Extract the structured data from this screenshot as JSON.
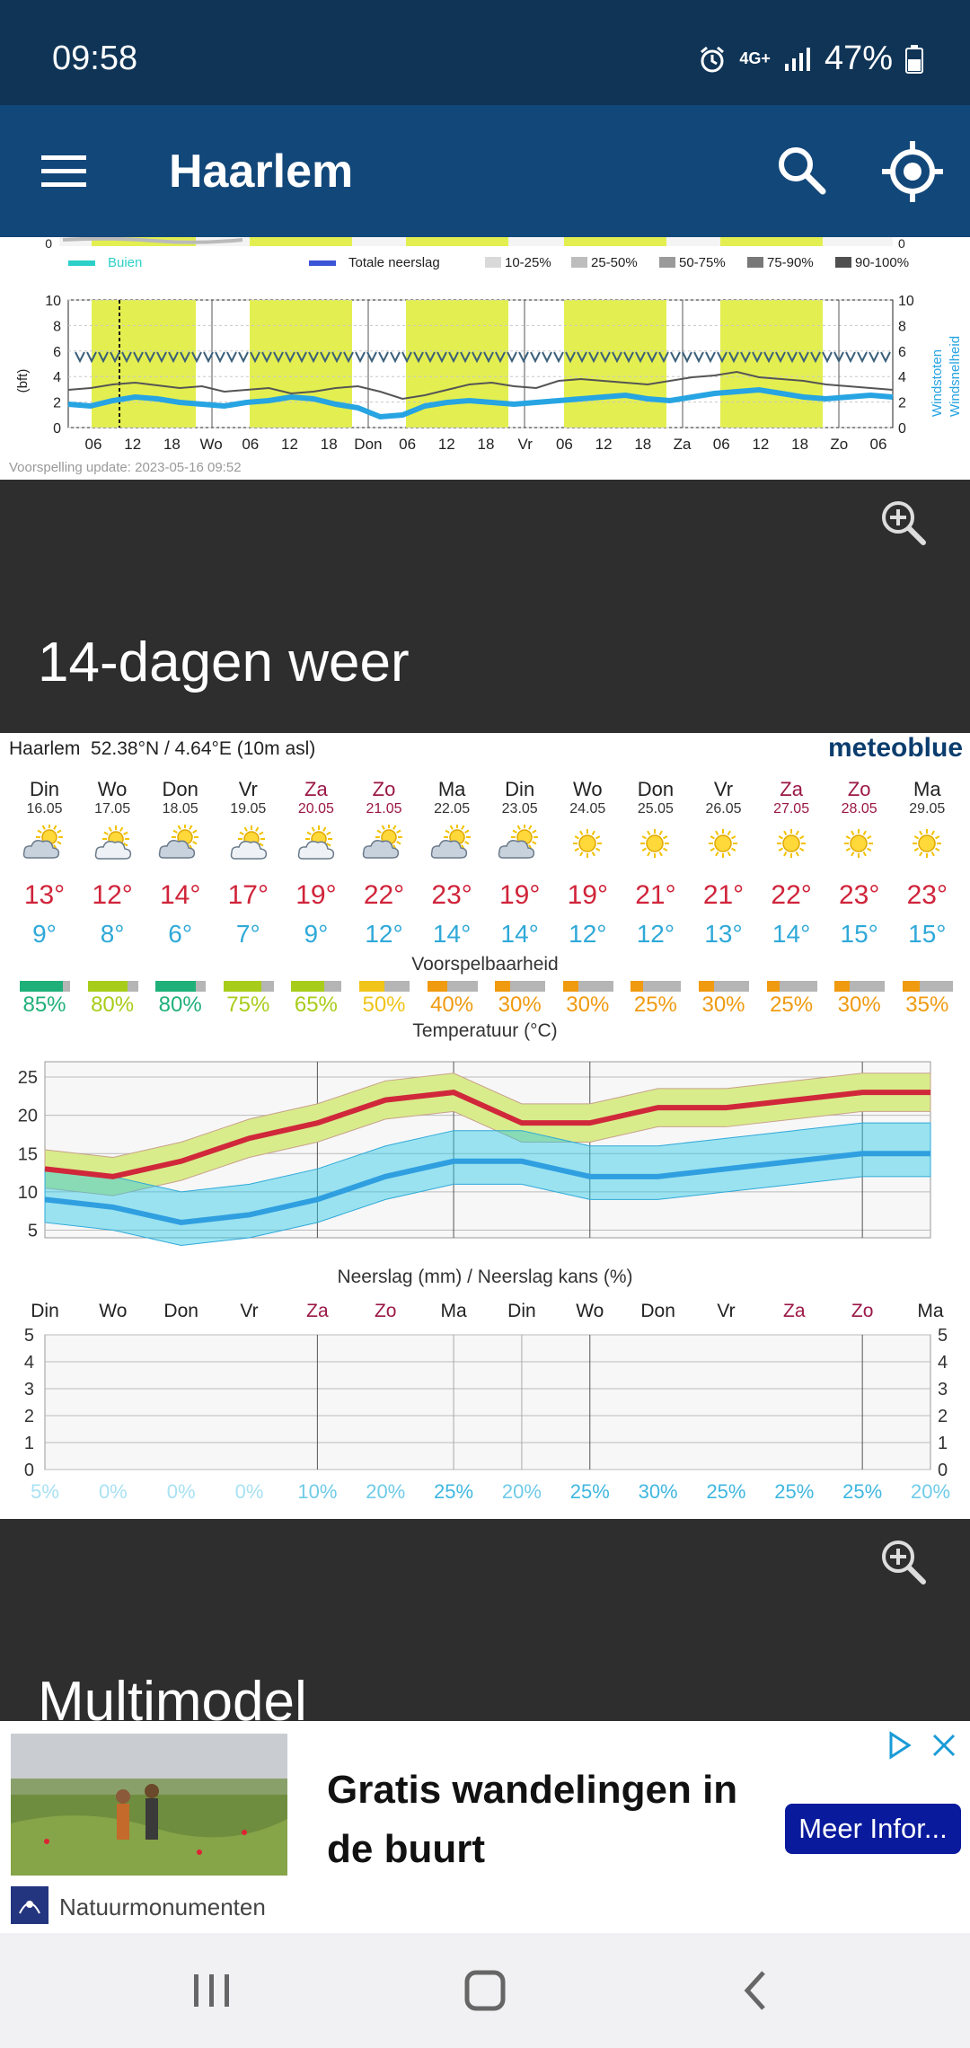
{
  "status": {
    "time": "09:58",
    "network": "4G+",
    "battery": "47%"
  },
  "app_bar": {
    "title": "Haarlem"
  },
  "top_chart": {
    "legend": [
      "Buien",
      "Totale neerslag",
      "10-25%",
      "25-50%",
      "50-75%",
      "75-90%",
      "90-100%"
    ],
    "y_unit": "(bft)",
    "y_ticks": [
      "10",
      "8",
      "6",
      "4",
      "2",
      "0"
    ],
    "x_labels": [
      "06",
      "12",
      "18",
      "Wo",
      "06",
      "12",
      "18",
      "Don",
      "06",
      "12",
      "18",
      "Vr",
      "06",
      "12",
      "18",
      "Za",
      "06",
      "12",
      "18",
      "Zo",
      "06"
    ],
    "right_axis_labels": [
      "Windstoten",
      "Windsnelheid"
    ],
    "update": "Voorspelling update: 2023-05-16 09:52",
    "colors": {
      "daylight": "#e3ef50",
      "wind_speed": "#27a4e2",
      "wind_gust": "#555555",
      "arrows": "#3b5f7a"
    }
  },
  "section_14": {
    "title": "14-dagen weer"
  },
  "forecast": {
    "location": "Haarlem",
    "coords": "52.38°N / 4.64°E (10m asl)",
    "brand": "meteoblue",
    "days": [
      {
        "name": "Din",
        "date": "16.05",
        "weekend": false,
        "icon": "partly-cloudy-icon",
        "max": "13°",
        "min": "9°",
        "rel": "85%",
        "rel_color": "#1fb07a"
      },
      {
        "name": "Wo",
        "date": "17.05",
        "weekend": false,
        "icon": "sun-cloud-icon",
        "max": "12°",
        "min": "8°",
        "rel": "80%",
        "rel_color": "#a8cc1a"
      },
      {
        "name": "Don",
        "date": "18.05",
        "weekend": false,
        "icon": "partly-cloudy-icon",
        "max": "14°",
        "min": "6°",
        "rel": "80%",
        "rel_color": "#1fb07a"
      },
      {
        "name": "Vr",
        "date": "19.05",
        "weekend": false,
        "icon": "sun-cloud-icon",
        "max": "17°",
        "min": "7°",
        "rel": "75%",
        "rel_color": "#a8cc1a"
      },
      {
        "name": "Za",
        "date": "20.05",
        "weekend": true,
        "icon": "sun-cloud-icon",
        "max": "19°",
        "min": "9°",
        "rel": "65%",
        "rel_color": "#a8cc1a"
      },
      {
        "name": "Zo",
        "date": "21.05",
        "weekend": true,
        "icon": "partly-cloudy-icon",
        "max": "22°",
        "min": "12°",
        "rel": "50%",
        "rel_color": "#f0c419"
      },
      {
        "name": "Ma",
        "date": "22.05",
        "weekend": false,
        "icon": "partly-cloudy-icon",
        "max": "23°",
        "min": "14°",
        "rel": "40%",
        "rel_color": "#f09a10"
      },
      {
        "name": "Din",
        "date": "23.05",
        "weekend": false,
        "icon": "partly-cloudy-icon",
        "max": "19°",
        "min": "14°",
        "rel": "30%",
        "rel_color": "#f09a10"
      },
      {
        "name": "Wo",
        "date": "24.05",
        "weekend": false,
        "icon": "sun-icon",
        "max": "19°",
        "min": "12°",
        "rel": "30%",
        "rel_color": "#f09a10"
      },
      {
        "name": "Don",
        "date": "25.05",
        "weekend": false,
        "icon": "sun-icon",
        "max": "21°",
        "min": "12°",
        "rel": "25%",
        "rel_color": "#f09a10"
      },
      {
        "name": "Vr",
        "date": "26.05",
        "weekend": false,
        "icon": "sun-icon",
        "max": "21°",
        "min": "13°",
        "rel": "30%",
        "rel_color": "#f09a10"
      },
      {
        "name": "Za",
        "date": "27.05",
        "weekend": true,
        "icon": "sun-icon",
        "max": "22°",
        "min": "14°",
        "rel": "25%",
        "rel_color": "#f09a10"
      },
      {
        "name": "Zo",
        "date": "28.05",
        "weekend": true,
        "icon": "sun-icon",
        "max": "23°",
        "min": "15°",
        "rel": "30%",
        "rel_color": "#f09a10"
      },
      {
        "name": "Ma",
        "date": "29.05",
        "weekend": false,
        "icon": "sun-icon",
        "max": "23°",
        "min": "15°",
        "rel": "35%",
        "rel_color": "#f09a10"
      }
    ],
    "labels": {
      "reliability": "Voorspelbaarheid",
      "temperature": "Temperatuur (°C)",
      "precip": "Neerslag (mm) / Neerslag kans (%)"
    },
    "precip_chance": [
      "5%",
      "0%",
      "0%",
      "0%",
      "10%",
      "20%",
      "25%",
      "20%",
      "25%",
      "30%",
      "25%",
      "25%",
      "25%",
      "20%"
    ],
    "temp_axis": [
      "25",
      "20",
      "15",
      "10",
      "5"
    ],
    "precip_axis": [
      "5",
      "4",
      "3",
      "2",
      "1",
      "0"
    ]
  },
  "chart_data": {
    "type": "line",
    "title": "Temperatuur (°C)",
    "categories": [
      "Din",
      "Wo",
      "Don",
      "Vr",
      "Za",
      "Zo",
      "Ma",
      "Din",
      "Wo",
      "Don",
      "Vr",
      "Za",
      "Zo",
      "Ma"
    ],
    "series": [
      {
        "values": [
          13,
          12,
          14,
          17,
          19,
          22,
          23,
          19,
          19,
          21,
          21,
          22,
          23,
          23
        ]
      },
      {
        "values": [
          9,
          8,
          6,
          7,
          9,
          12,
          14,
          14,
          12,
          12,
          13,
          14,
          15,
          15
        ]
      }
    ],
    "ylim": [
      4,
      27
    ],
    "grid": true
  },
  "section_multi": {
    "title": "Multimodel"
  },
  "ad": {
    "headline": "Gratis wandelingen in de buurt",
    "cta": "Meer Infor...",
    "brand": "Natuurmonumenten"
  }
}
